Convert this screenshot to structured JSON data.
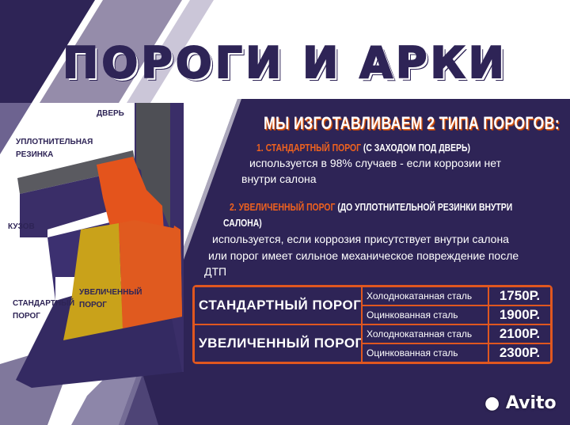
{
  "title": "ПОРОГИ И АРКИ",
  "heading": "МЫ ИЗГОТАВЛИВАЕМ 2 ТИПА ПОРОГОВ:",
  "types": [
    {
      "name": "1. СТАНДАРТНЫЙ ПОРОГ",
      "note": "(С ЗАХОДОМ ПОД ДВЕРЬ)",
      "note2": "",
      "desc": [
        "используется в 98% случаев - если коррозии нет",
        "внутри салона"
      ]
    },
    {
      "name": "2. УВЕЛИЧЕННЫЙ ПОРОГ",
      "note": "(ДО УПЛОТНИТЕЛЬНОЙ РЕЗИНКИ ВНУТРИ",
      "note2": "САЛОНА)",
      "desc": [
        "используется, если коррозия присутствует внутри салона",
        "или порог имеет сильное механическое повреждение после",
        "ДТП"
      ]
    }
  ],
  "diagram_labels": {
    "door": "ДВЕРЬ",
    "seal": [
      "УПЛОТНИТЕЛЬНАЯ",
      "РЕЗИНКА"
    ],
    "body": "КУЗОВ",
    "standard": [
      "СТАНДАРТНЫЙ",
      "ПОРОГ"
    ],
    "extended": [
      "УВЕЛИЧЕННЫЙ",
      "ПОРОГ"
    ]
  },
  "prices": [
    {
      "type": "СТАНДАРТНЫЙ ПОРОГ",
      "rows": [
        {
          "material": "Холоднокатанная сталь",
          "price": "1750Р."
        },
        {
          "material": "Оцинкованная сталь",
          "price": "1900Р."
        }
      ]
    },
    {
      "type": "УВЕЛИЧЕННЫЙ ПОРОГ",
      "rows": [
        {
          "material": "Холоднокатанная сталь",
          "price": "2100Р."
        },
        {
          "material": "Оцинкованная сталь",
          "price": "2300Р."
        }
      ]
    }
  ],
  "watermark": "Avito",
  "colors": {
    "purple": "#2e2456",
    "orange": "#e8521c",
    "yellow": "#c9a21a"
  }
}
